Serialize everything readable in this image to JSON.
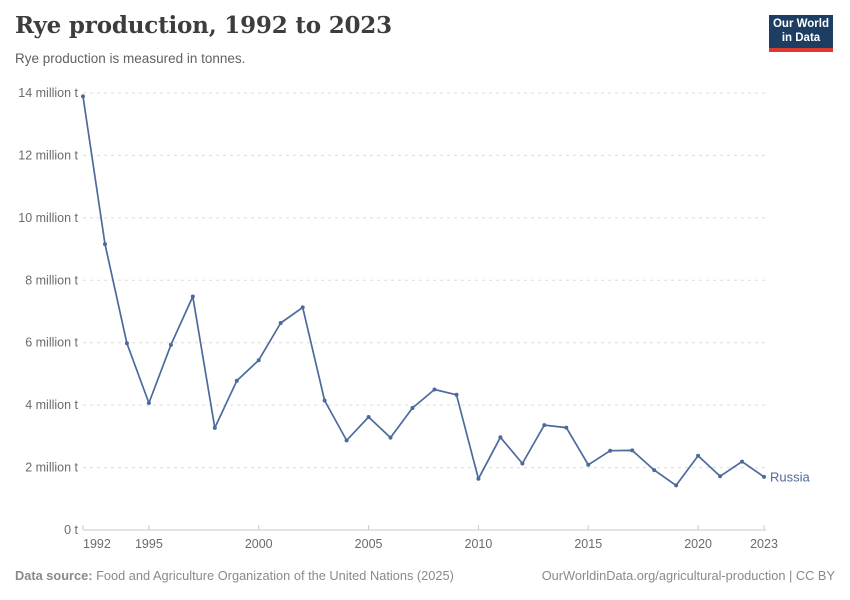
{
  "header": {
    "title": "Rye production, 1992 to 2023",
    "subtitle": "Rye production is measured in tonnes.",
    "logo": {
      "line1": "Our World",
      "line2": "in Data"
    }
  },
  "footer": {
    "source_label": "Data source:",
    "source_text": " Food and Agriculture Organization of the United Nations (2025)",
    "link_text": "OurWorldinData.org/agricultural-production | CC BY"
  },
  "colors": {
    "series_blue": "#4C6A9C",
    "gridline": "#dcdcdc",
    "axis": "#c8c8c8",
    "tick_label": "#6b6b6b",
    "logo_navy": "#1d3d63",
    "logo_red": "#dc3a2d"
  },
  "chart_data": {
    "type": "line",
    "title": "Rye production, 1992 to 2023",
    "subtitle": "Rye production is measured in tonnes.",
    "unit": "tonnes",
    "xlabel": "",
    "ylabel": "",
    "grid": "horizontal-dashed",
    "legend_position": "end-of-line-label",
    "xlim": [
      1992,
      2023
    ],
    "ylim": [
      0,
      14000000
    ],
    "ylim_million": [
      0,
      14
    ],
    "x": [
      1992,
      1993,
      1994,
      1995,
      1996,
      1997,
      1998,
      1999,
      2000,
      2001,
      2002,
      2003,
      2004,
      2005,
      2006,
      2007,
      2008,
      2009,
      2010,
      2011,
      2012,
      2013,
      2014,
      2015,
      2016,
      2017,
      2018,
      2019,
      2020,
      2021,
      2022,
      2023
    ],
    "series": [
      {
        "name": "Russia",
        "color": "#4C6A9C",
        "unit": "million t",
        "values_million_t": [
          13.89,
          9.16,
          5.98,
          4.07,
          5.93,
          7.48,
          3.27,
          4.78,
          5.44,
          6.63,
          7.13,
          4.15,
          2.87,
          3.62,
          2.96,
          3.91,
          4.5,
          4.33,
          1.64,
          2.97,
          2.13,
          3.36,
          3.28,
          2.09,
          2.54,
          2.55,
          1.92,
          1.43,
          2.38,
          1.72,
          2.19,
          1.7
        ]
      }
    ],
    "y_ticks": [
      {
        "value": 0,
        "label": "0 t"
      },
      {
        "value": 2,
        "label": "2 million t"
      },
      {
        "value": 4,
        "label": "4 million t"
      },
      {
        "value": 6,
        "label": "6 million t"
      },
      {
        "value": 8,
        "label": "8 million t"
      },
      {
        "value": 10,
        "label": "10 million t"
      },
      {
        "value": 12,
        "label": "12 million t"
      },
      {
        "value": 14,
        "label": "14 million t"
      }
    ],
    "x_ticks": [
      1992,
      1995,
      2000,
      2005,
      2010,
      2015,
      2020,
      2023
    ]
  }
}
